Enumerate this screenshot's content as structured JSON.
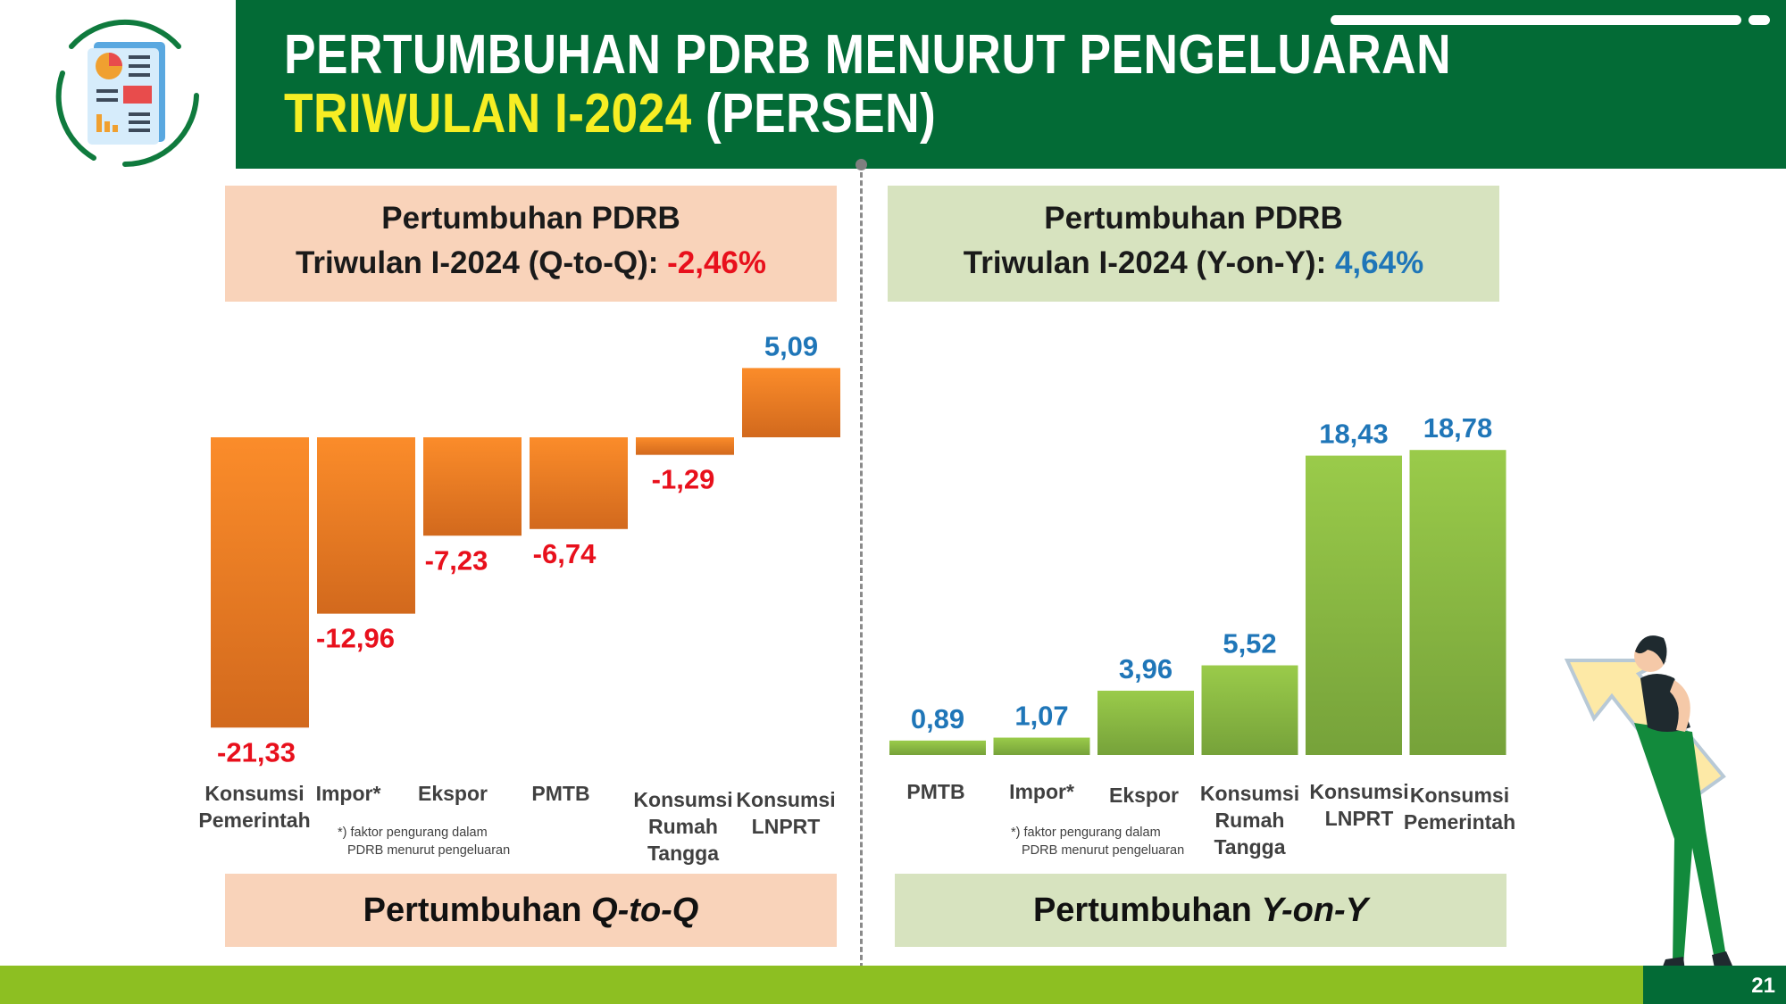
{
  "header": {
    "title_line1": "PERTUMBUHAN PDRB MENURUT PENGELUARAN",
    "title_line2_highlight": "TRIWULAN I-2024",
    "title_line2_rest": "(PERSEN)"
  },
  "left_panel": {
    "heading_line1": "Pertumbuhan PDRB",
    "heading_line2": "Triwulan I-2024 (Q-to-Q): ",
    "heading_value": "-2,46%",
    "footer_prefix": "Pertumbuhan ",
    "footer_italic": "Q-to-Q",
    "note_line1": "*) faktor pengurang dalam",
    "note_line2": "PDRB menurut pengeluaran"
  },
  "right_panel": {
    "heading_line1": "Pertumbuhan PDRB",
    "heading_line2": "Triwulan I-2024 (Y-on-Y): ",
    "heading_value": "4,64%",
    "footer_prefix": "Pertumbuhan ",
    "footer_italic": "Y-on-Y",
    "note_line1": "*) faktor pengurang dalam",
    "note_line2": "PDRB menurut pengeluaran"
  },
  "page_number": "21",
  "colors": {
    "header_green": "#036b36",
    "title_yellow": "#f6ee24",
    "bar_orange": "#f0852a",
    "bar_green": "#8cba44",
    "negative_label": "#e8101c",
    "positive_label": "#1f76b8",
    "bottom_bar": "#8dbf22"
  },
  "chart_data": [
    {
      "type": "bar",
      "name": "qtq",
      "categories": [
        [
          "Konsumsi",
          "Pemerintah"
        ],
        [
          "Impor*"
        ],
        [
          "Ekspor"
        ],
        [
          "PMTB"
        ],
        [
          "Konsumsi",
          "Rumah",
          "Tangga"
        ],
        [
          "Konsumsi",
          "LNPRT"
        ]
      ],
      "values": [
        -21.33,
        -12.96,
        -7.23,
        -6.74,
        -1.29,
        5.09
      ],
      "labels": [
        "-21,33",
        "-12,96",
        "-7,23",
        "-6,74",
        "-1,29",
        "5,09"
      ],
      "ylim": [
        -25,
        10
      ],
      "grid": false,
      "legend": "none"
    },
    {
      "type": "bar",
      "name": "yoy",
      "categories": [
        [
          "PMTB"
        ],
        [
          "Impor*"
        ],
        [
          "Ekspor"
        ],
        [
          "Konsumsi",
          "Rumah",
          "Tangga"
        ],
        [
          "Konsumsi",
          "LNPRT"
        ],
        [
          "Konsumsi",
          "Pemerintah"
        ]
      ],
      "values": [
        0.89,
        1.07,
        3.96,
        5.52,
        18.43,
        18.78
      ],
      "labels": [
        "0,89",
        "1,07",
        "3,96",
        "5,52",
        "18,43",
        "18,78"
      ],
      "ylim": [
        0,
        20
      ],
      "grid": false,
      "legend": "none"
    }
  ]
}
